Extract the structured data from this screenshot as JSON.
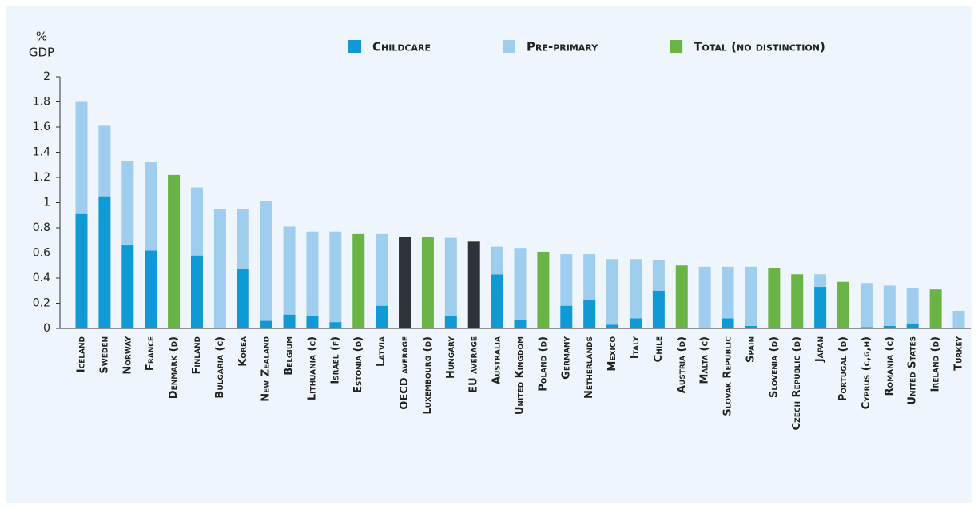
{
  "chart_data": {
    "type": "stacked_bar",
    "ylabel": [
      "%",
      "GDP"
    ],
    "categories": [
      "Iceland",
      "Sweden",
      "Norway",
      "France",
      "Denmark (d)",
      "Finland",
      "Bulgaria (c)",
      "Korea",
      "New Zealand",
      "Belgium",
      "Lithuania (c)",
      "Israel (f)",
      "Estonia (d)",
      "Latvia",
      "OECD average",
      "Luxembourg (d)",
      "Hungary",
      "EU average",
      "Australia",
      "United Kingdom",
      "Poland (d)",
      "Germany",
      "Netherlands",
      "Mexico",
      "Italy",
      "Chile",
      "Austria (d)",
      "Malta (c)",
      "Slovak Republic",
      "Spain",
      "Slovenia (d)",
      "Czech Republic (d)",
      "Japan",
      "Portugal (d)",
      "Cyprus (c,g,h)",
      "Romania (c)",
      "United States",
      "Ireland (d)",
      "Turkey"
    ],
    "series": [
      {
        "name": "Childcare",
        "color": "#0f9ad6",
        "values": [
          0.91,
          1.05,
          0.66,
          0.62,
          null,
          0.58,
          null,
          0.47,
          0.06,
          0.11,
          0.1,
          0.05,
          null,
          0.18,
          null,
          null,
          0.1,
          null,
          0.43,
          0.07,
          null,
          0.18,
          0.23,
          0.03,
          0.08,
          0.3,
          null,
          null,
          0.08,
          0.02,
          null,
          null,
          0.33,
          null,
          0.01,
          0.02,
          0.04,
          null,
          null
        ]
      },
      {
        "name": "Pre-primary",
        "color": "#9fcdee",
        "values": [
          0.89,
          0.56,
          0.67,
          0.7,
          null,
          0.54,
          0.95,
          0.48,
          0.95,
          0.7,
          0.67,
          0.72,
          null,
          0.57,
          null,
          null,
          0.62,
          null,
          0.22,
          0.57,
          null,
          0.41,
          0.36,
          0.52,
          0.47,
          0.24,
          null,
          0.49,
          0.41,
          0.47,
          null,
          null,
          0.1,
          null,
          0.35,
          0.32,
          0.28,
          null,
          0.14
        ]
      },
      {
        "name": "Total (no distinction)",
        "color": "#6ab446",
        "values": [
          null,
          null,
          null,
          null,
          1.22,
          null,
          null,
          null,
          null,
          null,
          null,
          null,
          0.75,
          null,
          null,
          0.73,
          null,
          null,
          null,
          null,
          0.61,
          null,
          null,
          null,
          null,
          null,
          0.5,
          null,
          null,
          null,
          0.48,
          0.43,
          null,
          0.37,
          null,
          null,
          null,
          0.31,
          null
        ]
      },
      {
        "color": "#2d3339",
        "values": [
          null,
          null,
          null,
          null,
          null,
          null,
          null,
          null,
          null,
          null,
          null,
          null,
          null,
          null,
          0.73,
          null,
          null,
          0.69,
          null,
          null,
          null,
          null,
          null,
          null,
          null,
          null,
          null,
          null,
          null,
          null,
          null,
          null,
          null,
          null,
          null,
          null,
          null,
          null,
          null
        ]
      }
    ],
    "ylim": [
      0,
      2
    ],
    "yticks": [
      0,
      0.2,
      0.4,
      0.6,
      0.8,
      1,
      1.2,
      1.4,
      1.6,
      1.8,
      2
    ]
  }
}
